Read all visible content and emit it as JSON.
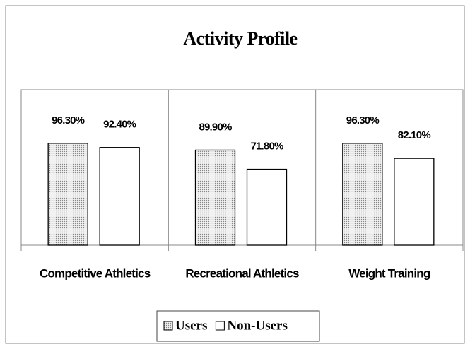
{
  "chart_data": {
    "type": "bar",
    "title": "Activity Profile",
    "categories": [
      "Competitive Athletics",
      "Recreational Athletics",
      "Weight Training"
    ],
    "series": [
      {
        "name": "Users",
        "color": "#d9d9d9",
        "values": [
          96.3,
          89.9,
          96.3
        ],
        "value_labels": [
          "96.30%",
          "89.90%",
          "96.30%"
        ]
      },
      {
        "name": "Non-Users",
        "color": "#ffffff",
        "values": [
          92.4,
          71.8,
          82.1
        ],
        "value_labels": [
          "92.40%",
          "71.80%",
          "82.10%"
        ]
      }
    ],
    "ylim": [
      0,
      147
    ],
    "legend": "bottom"
  }
}
